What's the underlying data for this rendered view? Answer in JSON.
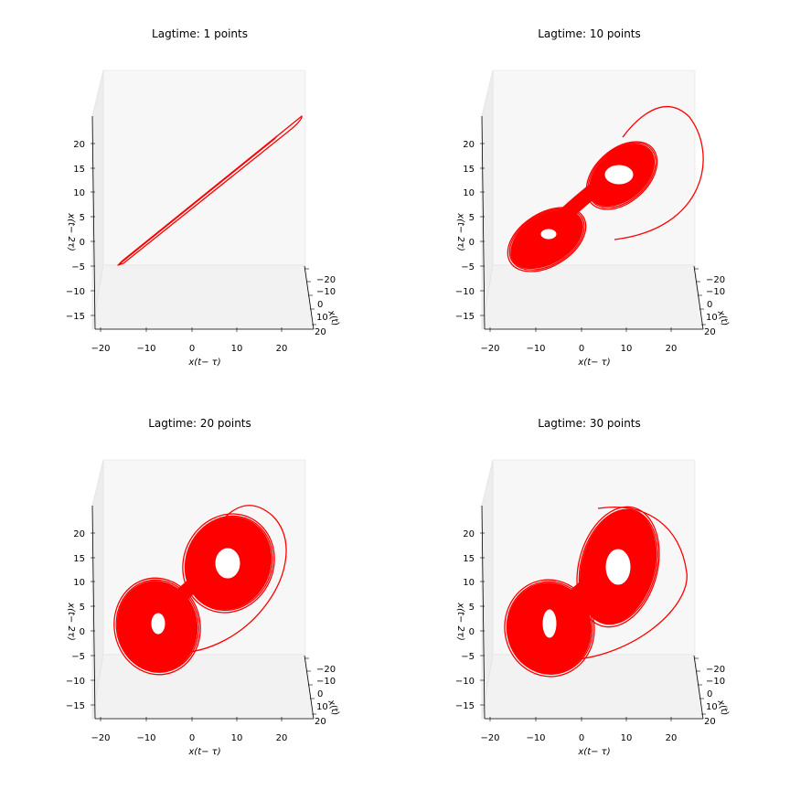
{
  "chart_data": [
    {
      "type": "line",
      "title": "Lagtime: 1 points",
      "lag": 1,
      "xlabel": "x(t− τ)",
      "ylabel": "x(t)",
      "zlabel": "x(t− 2τ)",
      "xticks": [
        "−20",
        "−10",
        "0",
        "10",
        "20"
      ],
      "yticks": [
        "−20",
        "−10",
        "0",
        "10",
        "20"
      ],
      "zticks": [
        "−15",
        "−10",
        "−5",
        "0",
        "5",
        "10",
        "15",
        "20"
      ],
      "xlim": [
        -20,
        25
      ],
      "zlim": [
        -17,
        24
      ],
      "series": [
        {
          "color": "#ff0000",
          "shape": "line",
          "extent": [
            -16,
            24
          ]
        }
      ]
    },
    {
      "type": "line",
      "title": "Lagtime: 10 points",
      "lag": 10,
      "xlabel": "x(t− τ)",
      "ylabel": "x(t)",
      "zlabel": "x(t− 2τ)",
      "xticks": [
        "−20",
        "−10",
        "0",
        "10",
        "20"
      ],
      "yticks": [
        "−20",
        "−10",
        "0",
        "10",
        "20"
      ],
      "zticks": [
        "−15",
        "−10",
        "−5",
        "0",
        "5",
        "10",
        "15",
        "20"
      ],
      "xlim": [
        -20,
        25
      ],
      "zlim": [
        -17,
        24
      ],
      "series": [
        {
          "color": "#ff0000",
          "shape": "attractor",
          "lobes": [
            [
              -7,
              -2
            ],
            [
              8,
              10
            ]
          ]
        }
      ]
    },
    {
      "type": "line",
      "title": "Lagtime: 20 points",
      "lag": 20,
      "xlabel": "x(t− τ)",
      "ylabel": "x(t)",
      "zlabel": "x(t− 2τ)",
      "xticks": [
        "−20",
        "−10",
        "0",
        "10",
        "20"
      ],
      "yticks": [
        "−20",
        "−10",
        "0",
        "10",
        "20"
      ],
      "zticks": [
        "−15",
        "−10",
        "−5",
        "0",
        "5",
        "10",
        "15",
        "20"
      ],
      "xlim": [
        -20,
        25
      ],
      "zlim": [
        -17,
        24
      ],
      "series": [
        {
          "color": "#ff0000",
          "shape": "attractor",
          "lobes": [
            [
              -9,
              1
            ],
            [
              8,
              9
            ]
          ]
        }
      ]
    },
    {
      "type": "line",
      "title": "Lagtime: 30 points",
      "lag": 30,
      "xlabel": "x(t− τ)",
      "ylabel": "x(t)",
      "zlabel": "x(t− 2τ)",
      "xticks": [
        "−20",
        "−10",
        "0",
        "10",
        "20"
      ],
      "yticks": [
        "−20",
        "−10",
        "0",
        "10",
        "20"
      ],
      "zticks": [
        "−15",
        "−10",
        "−5",
        "0",
        "5",
        "10",
        "15",
        "20"
      ],
      "xlim": [
        -20,
        25
      ],
      "zlim": [
        -17,
        24
      ],
      "series": [
        {
          "color": "#ff0000",
          "shape": "attractor",
          "lobes": [
            [
              -7,
              2
            ],
            [
              8,
              11
            ]
          ]
        }
      ]
    }
  ]
}
